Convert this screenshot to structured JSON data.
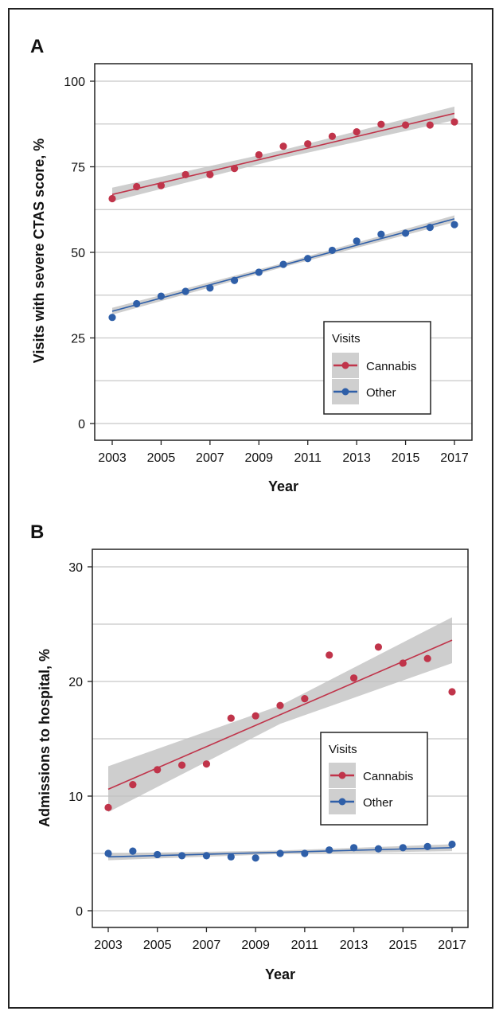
{
  "chart_data": [
    {
      "panel": "A",
      "type": "scatter",
      "xlabel": "Year",
      "ylabel": "Visits with severe CTAS score, %",
      "xlim": [
        2003,
        2017
      ],
      "ylim": [
        0,
        100
      ],
      "x_ticks": [
        2003,
        2005,
        2007,
        2009,
        2011,
        2013,
        2015,
        2017
      ],
      "y_ticks": [
        0,
        25,
        50,
        75,
        100
      ],
      "grid": "horizontal",
      "legend": {
        "title": "Visits",
        "position": "bottom-right",
        "entries": [
          "Cannabis",
          "Other"
        ]
      },
      "x": [
        2003,
        2004,
        2005,
        2006,
        2007,
        2008,
        2009,
        2010,
        2011,
        2012,
        2013,
        2014,
        2015,
        2016,
        2017
      ],
      "series": [
        {
          "name": "Cannabis",
          "color": "#c0344a",
          "values": [
            65.7,
            69.2,
            69.5,
            72.7,
            72.7,
            74.5,
            78.5,
            81.0,
            81.7,
            83.9,
            85.2,
            87.4,
            87.2,
            87.2,
            88.1
          ],
          "fit": [
            66.9,
            90.6
          ],
          "ci_halfwidth": [
            2.0,
            1.2,
            2.0
          ]
        },
        {
          "name": "Other",
          "color": "#2f5fa8",
          "values": [
            31.0,
            35.0,
            37.2,
            38.6,
            39.6,
            41.8,
            44.2,
            46.5,
            48.2,
            50.6,
            53.3,
            55.3,
            55.6,
            57.3,
            58.1
          ],
          "fit": [
            32.8,
            59.8
          ],
          "ci_halfwidth": [
            1.0,
            0.6,
            1.0
          ]
        }
      ]
    },
    {
      "panel": "B",
      "type": "scatter",
      "xlabel": "Year",
      "ylabel": "Admissions to hospital, %",
      "xlim": [
        2003,
        2017
      ],
      "ylim": [
        0,
        30
      ],
      "x_ticks": [
        2003,
        2005,
        2007,
        2009,
        2011,
        2013,
        2015,
        2017
      ],
      "y_ticks": [
        0,
        10,
        20,
        30
      ],
      "grid": "horizontal",
      "legend": {
        "title": "Visits",
        "position": "right",
        "entries": [
          "Cannabis",
          "Other"
        ]
      },
      "x": [
        2003,
        2004,
        2005,
        2006,
        2007,
        2008,
        2009,
        2010,
        2011,
        2012,
        2013,
        2014,
        2015,
        2016,
        2017
      ],
      "series": [
        {
          "name": "Cannabis",
          "color": "#c0344a",
          "values": [
            9.0,
            11.0,
            12.3,
            12.7,
            12.8,
            16.8,
            17.0,
            17.9,
            18.5,
            22.3,
            20.3,
            23.0,
            21.6,
            22.0,
            19.1
          ],
          "fit": [
            10.6,
            23.6
          ],
          "ci_halfwidth": [
            2.0,
            0.8,
            2.0
          ]
        },
        {
          "name": "Other",
          "color": "#2f5fa8",
          "values": [
            5.0,
            5.2,
            4.9,
            4.8,
            4.8,
            4.7,
            4.6,
            5.0,
            5.0,
            5.3,
            5.5,
            5.4,
            5.5,
            5.6,
            5.8
          ],
          "fit": [
            4.7,
            5.5
          ],
          "ci_halfwidth": [
            0.3,
            0.15,
            0.3
          ]
        }
      ]
    }
  ]
}
